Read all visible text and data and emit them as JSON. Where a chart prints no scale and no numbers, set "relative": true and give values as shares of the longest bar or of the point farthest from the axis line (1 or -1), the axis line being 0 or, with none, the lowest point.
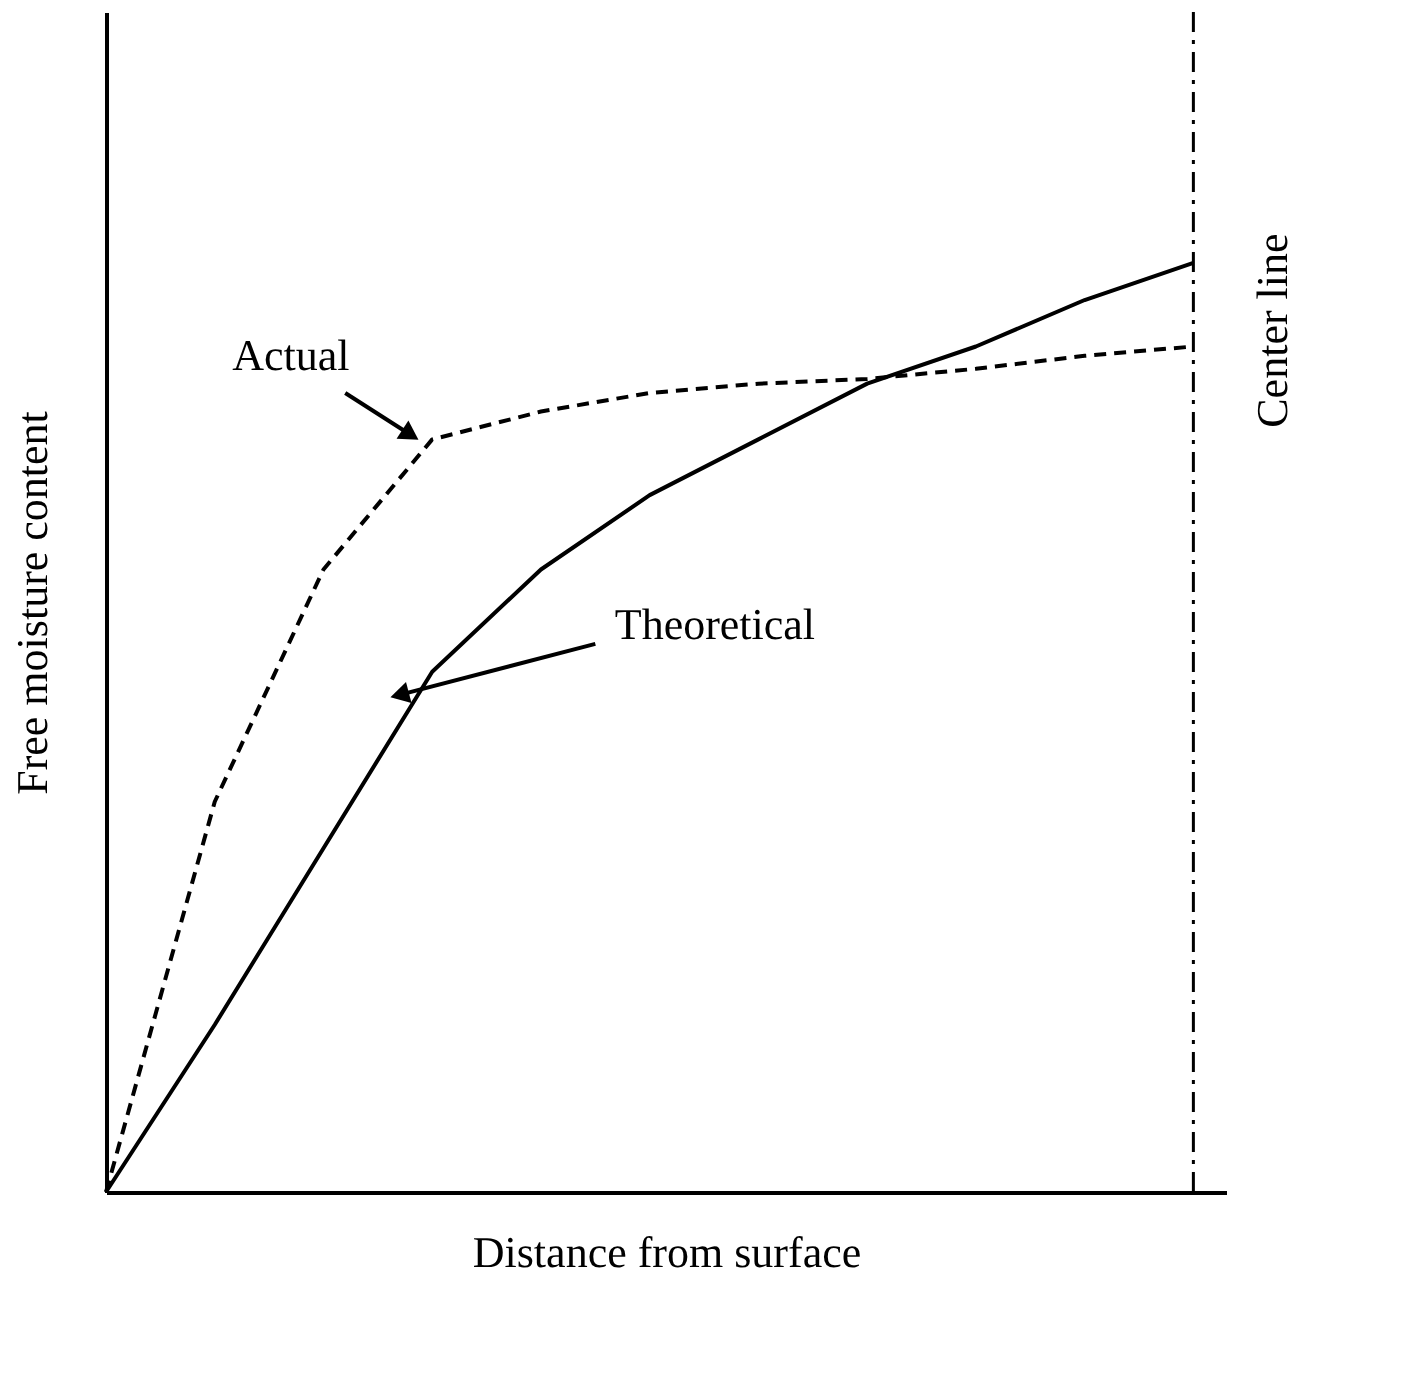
{
  "chart_data": {
    "type": "line",
    "relative": true,
    "xlabel": "Distance from surface",
    "ylabel": "Free moisture content",
    "tick_labels": false,
    "grid": false,
    "marker": "none",
    "categories": [
      null,
      null,
      null,
      null,
      null,
      null,
      null,
      null,
      null,
      null,
      null
    ],
    "series": [
      {
        "name": "Actual",
        "color": "#000000",
        "line_style": "dashed",
        "values": [
          0,
          0.42,
          0.67,
          0.81,
          0.84,
          0.86,
          0.87,
          0.875,
          0.886,
          0.9,
          0.91
        ]
      },
      {
        "name": "Theoretical",
        "color": "#000000",
        "line_style": "solid",
        "values": [
          0,
          0.18,
          0.37,
          0.56,
          0.67,
          0.75,
          0.81,
          0.87,
          0.91,
          0.96,
          1.0
        ]
      }
    ],
    "annotations": [
      "Center line"
    ]
  }
}
